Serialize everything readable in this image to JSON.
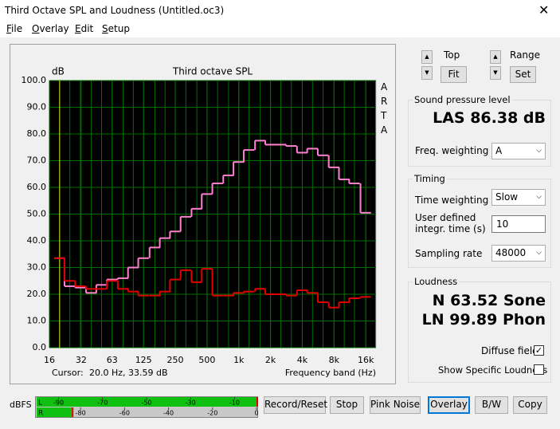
{
  "window": {
    "title": "Third Octave SPL and Loudness (Untitled.oc3)"
  },
  "menu": [
    "File",
    "Overlay",
    "Edit",
    "Setup"
  ],
  "chart_data": {
    "type": "step",
    "title": "Third octave SPL",
    "y_label": "dB",
    "x_label": "Frequency band (Hz)",
    "brand": "ARTA",
    "cursor_label": "Cursor:",
    "cursor_text": "20.0 Hz, 33.59 dB",
    "x": [
      20,
      25,
      31.5,
      40,
      50,
      63,
      80,
      100,
      125,
      160,
      200,
      250,
      315,
      400,
      500,
      630,
      800,
      1000,
      1250,
      1600,
      2000,
      2500,
      3150,
      4000,
      5000,
      6300,
      8000,
      10000,
      12500,
      16000
    ],
    "series": [
      {
        "color": "#ff80d0",
        "values": [
          33.5,
          23,
          22.5,
          20.5,
          23.5,
          25.5,
          26,
          30,
          33.5,
          37.5,
          41,
          43.5,
          49,
          52,
          57.5,
          61.5,
          64.5,
          69.5,
          74,
          77.5,
          76,
          76,
          75.5,
          73,
          74.5,
          72,
          67.5,
          63,
          61.5,
          50.5
        ]
      },
      {
        "color": "#e00000",
        "values": [
          33.5,
          25,
          23,
          22,
          22,
          25,
          22,
          21,
          19.5,
          19.5,
          21,
          25.5,
          29,
          24.5,
          29.5,
          19.5,
          19.5,
          20.5,
          21,
          22,
          20,
          20,
          19.5,
          21.5,
          20.5,
          17,
          15,
          17,
          18.5,
          19
        ]
      }
    ],
    "xscale": "log",
    "xlim": [
      16,
      20000
    ],
    "xticks": [
      16,
      32,
      63,
      125,
      250,
      500,
      {
        "value": 1000,
        "label": "1k"
      },
      {
        "value": 2000,
        "label": "2k"
      },
      {
        "value": 4000,
        "label": "4k"
      },
      {
        "value": 8000,
        "label": "8k"
      },
      {
        "value": 16000,
        "label": "16k"
      }
    ],
    "ylim": [
      0,
      100
    ],
    "yticks": [
      {
        "value": 0,
        "label": "0.0"
      },
      {
        "value": 10,
        "label": "10.0"
      },
      {
        "value": 20,
        "label": "20.0"
      },
      {
        "value": 30,
        "label": "30.0"
      },
      {
        "value": 40,
        "label": "40.0"
      },
      {
        "value": 50,
        "label": "50.0"
      },
      {
        "value": 60,
        "label": "60.0"
      },
      {
        "value": 70,
        "label": "70.0"
      },
      {
        "value": 80,
        "label": "80.0"
      },
      {
        "value": 90,
        "label": "90.0"
      },
      {
        "value": 100,
        "label": "100.0"
      }
    ],
    "grid": true,
    "background": "#000000",
    "grid_color": "#007000",
    "cursor_color": "#e0e000"
  },
  "controls": {
    "top_label": "Top",
    "fit": "Fit",
    "range_label": "Range",
    "set": "Set"
  },
  "spl": {
    "title": "Sound pressure level",
    "reading": "LAS 86.38 dB",
    "freq_weighting_label": "Freq. weighting",
    "freq_weighting": "A"
  },
  "timing": {
    "title": "Timing",
    "time_weighting_label": "Time weighting",
    "time_weighting": "Slow",
    "integr_label_1": "User defined",
    "integr_label_2": "integr. time (s)",
    "integr_time": "10",
    "sampling_rate_label": "Sampling rate",
    "sampling_rate": "48000"
  },
  "loudness": {
    "title": "Loudness",
    "n": "N 63.52 Sone",
    "ln": "LN 99.89 Phon",
    "diffuse_field": "Diffuse field",
    "diffuse_checked": true,
    "show_specific": "Show Specific Loudness",
    "show_specific_checked": false
  },
  "meter": {
    "label": "dBFS",
    "lim": [
      -100,
      0
    ],
    "top_ticks": [
      -90,
      -70,
      -50,
      -30,
      -10
    ],
    "bottom_ticks": [
      -80,
      -60,
      -40,
      -20,
      0
    ],
    "channels": [
      {
        "name": "L",
        "value": 0
      },
      {
        "name": "R",
        "value": -84
      }
    ]
  },
  "buttons": [
    "Record/Reset",
    "Stop",
    "Pink Noise",
    "Overlay",
    "B/W",
    "Copy"
  ]
}
